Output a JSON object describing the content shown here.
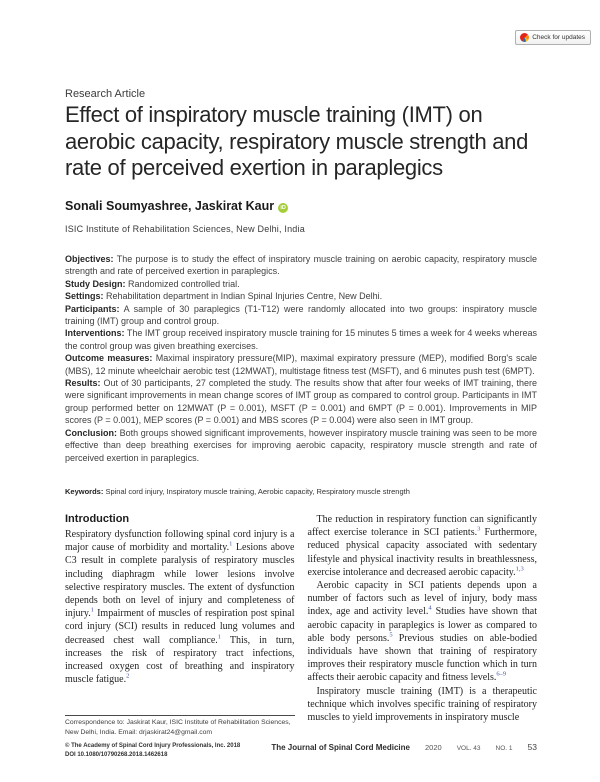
{
  "colors": {
    "orcid_green": "#a6ce39",
    "citation_blue": "#4356aa"
  },
  "badge": {
    "label": "Check for updates"
  },
  "header": {
    "article_type": "Research Article",
    "title": "Effect of inspiratory muscle training (IMT) on aerobic capacity, respiratory muscle strength and rate of perceived exertion in paraplegics",
    "authors": "Sonali Soumyashree, Jaskirat Kaur",
    "orcid_label": "iD",
    "affiliation": "ISIC Institute of Rehabilitation Sciences, New Delhi, India"
  },
  "abstract": {
    "items": [
      {
        "label": "Objectives:",
        "text": "The purpose is to study the effect of inspiratory muscle training on aerobic capacity, respiratory muscle strength and rate of perceived exertion in paraplegics."
      },
      {
        "label": "Study Design:",
        "text": "Randomized controlled trial."
      },
      {
        "label": "Settings:",
        "text": "Rehabilitation department in Indian Spinal Injuries Centre, New Delhi."
      },
      {
        "label": "Participants:",
        "text": "A sample of 30 paraplegics (T1-T12) were randomly allocated into two groups: inspiratory muscle training (IMT) group and control group."
      },
      {
        "label": "Interventions:",
        "text": "The IMT group received inspiratory muscle training for 15 minutes 5 times a week for 4 weeks whereas the control group was given breathing exercises."
      },
      {
        "label": "Outcome measures:",
        "text": "Maximal inspiratory pressure(MIP), maximal expiratory pressure (MEP), modified Borg's scale (MBS), 12 minute wheelchair aerobic test (12MWAT), multistage fitness test (MSFT), and 6 minutes push test (6MPT)."
      },
      {
        "label": "Results:",
        "text": "Out of 30 participants, 27 completed the study. The results show that after four weeks of IMT training, there were significant improvements in mean change scores of IMT group as compared to control group. Participants in IMT group performed better on 12MWAT (P = 0.001), MSFT (P = 0.001) and 6MPT (P = 0.001). Improvements in MIP scores (P = 0.001), MEP scores (P = 0.001) and MBS scores (P = 0.004) were also seen in IMT group."
      },
      {
        "label": "Conclusion:",
        "text": "Both groups showed significant improvements, however inspiratory muscle training was seen to be more effective than deep breathing exercises for improving aerobic capacity, respiratory muscle strength and rate of perceived exertion in paraplegics."
      }
    ]
  },
  "keywords": {
    "label": "Keywords:",
    "text": "Spinal cord injury, Inspiratory muscle training, Aerobic capacity, Respiratory muscle strength"
  },
  "introduction": {
    "heading": "Introduction",
    "p1": {
      "t0": "Respiratory dysfunction following spinal cord injury is a major cause of morbidity and mortality.",
      "s0": "1",
      "t1": " Lesions above C3 result in complete paralysis of respiratory muscles including diaphragm while lower lesions involve selective respiratory muscles. The extent of dysfunction depends both on level of injury and completeness of injury.",
      "s1": "1",
      "t2": " Impairment of muscles of respiration post spinal cord injury (SCI) results in reduced lung volumes and decreased chest wall compliance.",
      "s2": "1",
      "t3": " This, in turn, increases the risk of respiratory tract infections, increased oxygen cost of breathing and inspiratory muscle fatigue.",
      "s3": "2"
    },
    "rp1": {
      "t0": "The reduction in respiratory function can significantly affect exercise tolerance in SCI patients.",
      "s0": "3",
      "t1": " Furthermore, reduced physical capacity associated with sedentary lifestyle and physical inactivity results in breathlessness, exercise intolerance and decreased aerobic capacity.",
      "s1": "1,3"
    },
    "rp2": {
      "t0": "Aerobic capacity in SCI patients depends upon a number of factors such as level of injury, body mass index, age and activity level.",
      "s0": "4",
      "t1": " Studies have shown that aerobic capacity in paraplegics is lower as compared to able body persons.",
      "s1": "5",
      "t2": " Previous studies on able-bodied individuals have shown that training of respiratory improves their respiratory muscle function which in turn affects their aerobic capacity and fitness levels.",
      "s2": "6–9"
    },
    "rp3": {
      "t0": "Inspiratory muscle training (IMT) is a therapeutic technique which involves specific training of respiratory muscles to yield improvements in inspiratory muscle"
    }
  },
  "footnote": {
    "text": "Correspondence to: Jaskirat Kaur, ISIC Institute of Rehabilitation Sciences, New Delhi, India. Email: drjaskirat24@gmail.com"
  },
  "footer": {
    "copyright": "© The Academy of Spinal Cord Injury Professionals, Inc. 2018",
    "doi": "DOI 10.1080/10790268.2018.1462618",
    "journal": "The Journal of Spinal Cord Medicine",
    "year": "2020",
    "volume": "VOL. 43",
    "number": "NO. 1",
    "page": "53"
  }
}
